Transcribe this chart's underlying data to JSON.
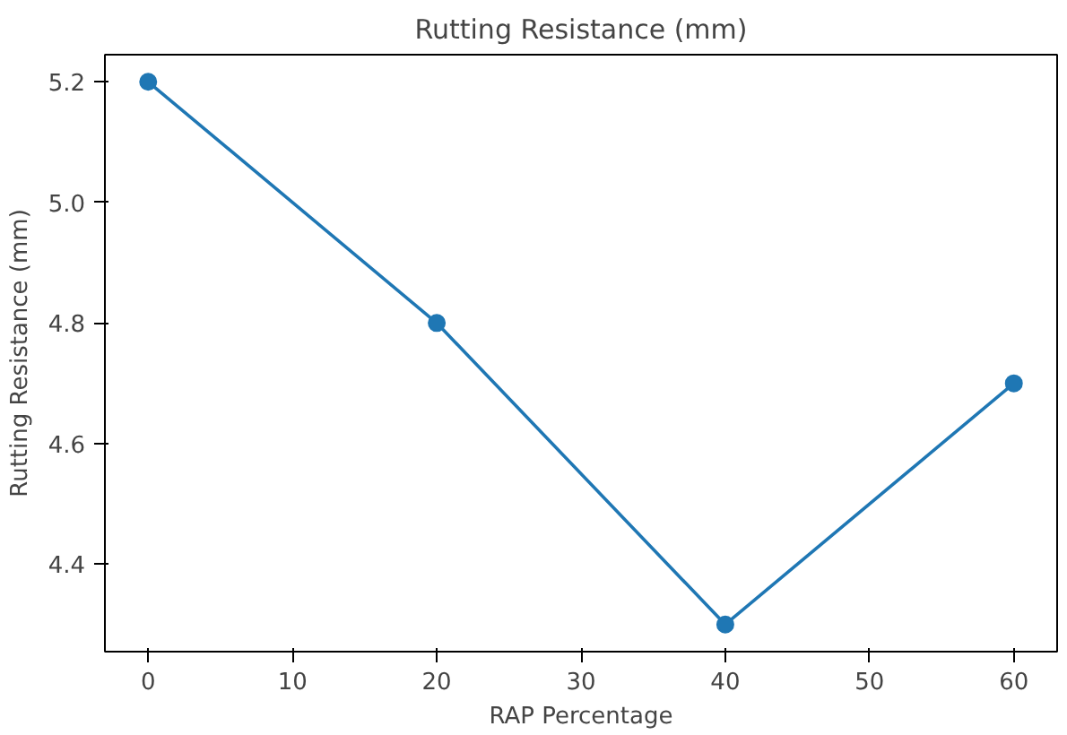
{
  "chart_data": {
    "type": "line",
    "title": "Rutting Resistance (mm)",
    "xlabel": "RAP Percentage",
    "ylabel": "Rutting Resistance (mm)",
    "x": [
      0,
      20,
      40,
      60
    ],
    "series": [
      {
        "color": "#1f77b4",
        "values": [
          5.2,
          4.8,
          4.3,
          4.7
        ]
      }
    ],
    "xlim": [
      -3,
      63
    ],
    "ylim": [
      4.255,
      5.245
    ],
    "xticks": [
      0,
      10,
      20,
      30,
      40,
      50,
      60
    ],
    "yticks": [
      4.4,
      4.6,
      4.8,
      {
        "value": 5,
        "label": "5.0"
      },
      5.2
    ],
    "marker": "circle",
    "line_style": "solid"
  }
}
